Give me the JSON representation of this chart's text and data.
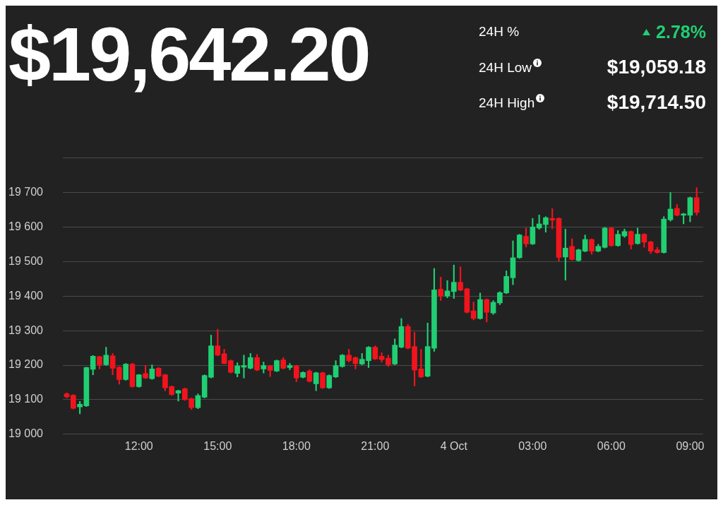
{
  "chart_data": {
    "type": "candlestick",
    "title": "$19,642.20",
    "annotations": [
      "24H %",
      "2.78%",
      "24H Low",
      "$19,059.18",
      "24H High",
      "$19,714.50"
    ],
    "x": [
      "--10-03T09:15",
      "--10-03T09:30",
      "--10-03T09:45",
      "--10-03T10:00",
      "--10-03T10:15",
      "--10-03T10:30",
      "--10-03T10:45",
      "--10-03T11:00",
      "--10-03T11:15",
      "--10-03T11:30",
      "--10-03T11:45",
      "--10-03T12:00",
      "--10-03T12:15",
      "--10-03T12:30",
      "--10-03T12:45",
      "--10-03T13:00",
      "--10-03T13:15",
      "--10-03T13:30",
      "--10-03T13:45",
      "--10-03T14:00",
      "--10-03T14:15",
      "--10-03T14:30",
      "--10-03T14:45",
      "--10-03T15:00",
      "--10-03T15:15",
      "--10-03T15:30",
      "--10-03T15:45",
      "--10-03T16:00",
      "--10-03T16:15",
      "--10-03T16:30",
      "--10-03T16:45",
      "--10-03T17:00",
      "--10-03T17:15",
      "--10-03T17:30",
      "--10-03T17:45",
      "--10-03T18:00",
      "--10-03T18:15",
      "--10-03T18:30",
      "--10-03T18:45",
      "--10-03T19:00",
      "--10-03T19:15",
      "--10-03T19:30",
      "--10-03T19:45",
      "--10-03T20:00",
      "--10-03T20:15",
      "--10-03T20:30",
      "--10-03T20:45",
      "--10-03T21:00",
      "--10-03T21:15",
      "--10-03T21:30",
      "--10-03T21:45",
      "--10-03T22:00",
      "--10-03T22:15",
      "--10-03T22:30",
      "--10-03T22:45",
      "--10-03T23:00",
      "--10-03T23:15",
      "--10-03T23:30",
      "--10-03T23:45",
      "--10-04T00:00",
      "--10-04T00:15",
      "--10-04T00:30",
      "--10-04T00:45",
      "--10-04T01:00",
      "--10-04T01:15",
      "--10-04T01:30",
      "--10-04T01:45",
      "--10-04T02:00",
      "--10-04T02:15",
      "--10-04T02:30",
      "--10-04T02:45",
      "--10-04T03:00",
      "--10-04T03:15",
      "--10-04T03:30",
      "--10-04T03:45",
      "--10-04T04:00",
      "--10-04T04:15",
      "--10-04T04:30",
      "--10-04T04:45",
      "--10-04T05:00",
      "--10-04T05:15",
      "--10-04T05:30",
      "--10-04T05:45",
      "--10-04T06:00",
      "--10-04T06:15",
      "--10-04T06:30",
      "--10-04T06:45",
      "--10-04T07:00",
      "--10-04T07:15",
      "--10-04T07:30",
      "--10-04T07:45",
      "--10-04T08:00",
      "--10-04T08:15",
      "--10-04T08:30",
      "--10-04T08:45",
      "--10-04T09:00",
      "--10-04T09:15"
    ],
    "ohlc": [
      [
        19117,
        19120,
        19105,
        19108
      ],
      [
        19113,
        19115,
        19073,
        19075
      ],
      [
        19079,
        19095,
        19059,
        19087
      ],
      [
        19082,
        19194,
        19080,
        19193
      ],
      [
        19188,
        19228,
        19172,
        19226
      ],
      [
        19225,
        19226,
        19189,
        19201
      ],
      [
        19201,
        19252,
        19199,
        19229
      ],
      [
        19227,
        19234,
        19172,
        19191
      ],
      [
        19194,
        19196,
        19145,
        19158
      ],
      [
        19158,
        19205,
        19156,
        19203
      ],
      [
        19203,
        19206,
        19136,
        19138
      ],
      [
        19138,
        19173,
        19136,
        19172
      ],
      [
        19176,
        19199,
        19161,
        19163
      ],
      [
        19161,
        19201,
        19159,
        19189
      ],
      [
        19191,
        19193,
        19166,
        19168
      ],
      [
        19172,
        19174,
        19126,
        19134
      ],
      [
        19138,
        19140,
        19112,
        19115
      ],
      [
        19119,
        19128,
        19096,
        19126
      ],
      [
        19132,
        19134,
        19098,
        19100
      ],
      [
        19103,
        19105,
        19072,
        19077
      ],
      [
        19077,
        19117,
        19074,
        19112
      ],
      [
        19107,
        19172,
        19105,
        19170
      ],
      [
        19165,
        19287,
        19163,
        19256
      ],
      [
        19256,
        19304,
        19227,
        19229
      ],
      [
        19233,
        19246,
        19203,
        19205
      ],
      [
        19213,
        19215,
        19177,
        19179
      ],
      [
        19176,
        19207,
        19166,
        19198
      ],
      [
        19194,
        19229,
        19163,
        19199
      ],
      [
        19191,
        19234,
        19189,
        19222
      ],
      [
        19222,
        19231,
        19184,
        19186
      ],
      [
        19189,
        19209,
        19177,
        19199
      ],
      [
        19198,
        19200,
        19167,
        19185
      ],
      [
        19183,
        19215,
        19181,
        19213
      ],
      [
        19215,
        19222,
        19189,
        19191
      ],
      [
        19193,
        19205,
        19187,
        19199
      ],
      [
        19198,
        19200,
        19152,
        19163
      ],
      [
        19165,
        19181,
        19163,
        19179
      ],
      [
        19183,
        19187,
        19151,
        19153
      ],
      [
        19146,
        19180,
        19126,
        19178
      ],
      [
        19178,
        19180,
        19132,
        19134
      ],
      [
        19134,
        19172,
        19132,
        19170
      ],
      [
        19166,
        19213,
        19164,
        19199
      ],
      [
        19196,
        19231,
        19194,
        19229
      ],
      [
        19229,
        19246,
        19209,
        19213
      ],
      [
        19222,
        19224,
        19189,
        19204
      ],
      [
        19203,
        19234,
        19201,
        19217
      ],
      [
        19213,
        19254,
        19193,
        19252
      ],
      [
        19252,
        19256,
        19216,
        19218
      ],
      [
        19226,
        19236,
        19209,
        19216
      ],
      [
        19220,
        19229,
        19196,
        19201
      ],
      [
        19203,
        19276,
        19201,
        19258
      ],
      [
        19252,
        19335,
        19250,
        19312
      ],
      [
        19312,
        19318,
        19247,
        19249
      ],
      [
        19254,
        19295,
        19140,
        19186
      ],
      [
        19189,
        19246,
        19164,
        19166
      ],
      [
        19168,
        19322,
        19166,
        19254
      ],
      [
        19249,
        19480,
        19240,
        19418
      ],
      [
        19420,
        19455,
        19387,
        19400
      ],
      [
        19400,
        19445,
        19395,
        19415
      ],
      [
        19413,
        19490,
        19393,
        19440
      ],
      [
        19440,
        19485,
        19415,
        19417
      ],
      [
        19421,
        19423,
        19351,
        19353
      ],
      [
        19357,
        19383,
        19331,
        19335
      ],
      [
        19335,
        19409,
        19333,
        19390
      ],
      [
        19390,
        19392,
        19325,
        19353
      ],
      [
        19351,
        19387,
        19347,
        19382
      ],
      [
        19380,
        19413,
        19375,
        19410
      ],
      [
        19409,
        19473,
        19407,
        19457
      ],
      [
        19453,
        19560,
        19433,
        19511
      ],
      [
        19511,
        19579,
        19509,
        19577
      ],
      [
        19573,
        19597,
        19542,
        19551
      ],
      [
        19551,
        19625,
        19549,
        19600
      ],
      [
        19597,
        19635,
        19593,
        19609
      ],
      [
        19607,
        19630,
        19585,
        19627
      ],
      [
        19625,
        19653,
        19595,
        19620
      ],
      [
        19625,
        19627,
        19501,
        19512
      ],
      [
        19513,
        19594,
        19446,
        19539
      ],
      [
        19544,
        19566,
        19504,
        19506
      ],
      [
        19503,
        19536,
        19501,
        19534
      ],
      [
        19530,
        19577,
        19528,
        19564
      ],
      [
        19564,
        19566,
        19521,
        19530
      ],
      [
        19530,
        19550,
        19528,
        19544
      ],
      [
        19541,
        19599,
        19539,
        19597
      ],
      [
        19597,
        19599,
        19544,
        19546
      ],
      [
        19546,
        19590,
        19544,
        19579
      ],
      [
        19574,
        19594,
        19570,
        19587
      ],
      [
        19587,
        19589,
        19536,
        19549
      ],
      [
        19552,
        19597,
        19550,
        19579
      ],
      [
        19579,
        19581,
        19541,
        19556
      ],
      [
        19557,
        19559,
        19523,
        19530
      ],
      [
        19534,
        19541,
        19524,
        19526
      ],
      [
        19526,
        19630,
        19524,
        19623
      ],
      [
        19621,
        19700,
        19617,
        19652
      ],
      [
        19654,
        19665,
        19632,
        19634
      ],
      [
        19634,
        19640,
        19609,
        19638
      ],
      [
        19634,
        19687,
        19615,
        19685
      ],
      [
        19685,
        19714,
        19634,
        19642
      ]
    ],
    "colors": [
      "#f2141d",
      "#f2141d",
      "#1fcf72",
      "#1fcf72",
      "#1fcf72",
      "#f2141d",
      "#1fcf72",
      "#f2141d",
      "#f2141d",
      "#1fcf72",
      "#f2141d",
      "#1fcf72",
      "#f2141d",
      "#1fcf72",
      "#f2141d",
      "#f2141d",
      "#f2141d",
      "#1fcf72",
      "#f2141d",
      "#f2141d",
      "#1fcf72",
      "#1fcf72",
      "#1fcf72",
      "#f2141d",
      "#f2141d",
      "#f2141d",
      "#1fcf72",
      "#1fcf72",
      "#1fcf72",
      "#f2141d",
      "#1fcf72",
      "#f2141d",
      "#1fcf72",
      "#f2141d",
      "#1fcf72",
      "#f2141d",
      "#1fcf72",
      "#f2141d",
      "#1fcf72",
      "#f2141d",
      "#1fcf72",
      "#1fcf72",
      "#1fcf72",
      "#f2141d",
      "#f2141d",
      "#1fcf72",
      "#1fcf72",
      "#f2141d",
      "#f2141d",
      "#f2141d",
      "#1fcf72",
      "#1fcf72",
      "#f2141d",
      "#f2141d",
      "#f2141d",
      "#1fcf72",
      "#1fcf72",
      "#f2141d",
      "#1fcf72",
      "#1fcf72",
      "#f2141d",
      "#f2141d",
      "#f2141d",
      "#1fcf72",
      "#f2141d",
      "#1fcf72",
      "#1fcf72",
      "#1fcf72",
      "#1fcf72",
      "#1fcf72",
      "#f2141d",
      "#1fcf72",
      "#1fcf72",
      "#1fcf72",
      "#f2141d",
      "#f2141d",
      "#1fcf72",
      "#f2141d",
      "#1fcf72",
      "#1fcf72",
      "#f2141d",
      "#1fcf72",
      "#1fcf72",
      "#f2141d",
      "#1fcf72",
      "#1fcf72",
      "#f2141d",
      "#1fcf72",
      "#f2141d",
      "#f2141d",
      "#f2141d",
      "#1fcf72",
      "#1fcf72",
      "#f2141d",
      "#1fcf72",
      "#1fcf72",
      "#f2141d"
    ],
    "xlim": [
      "--10-03T09:06",
      "--10-04T09:30"
    ],
    "xticks": [
      {
        "value": "--10-03T12:00",
        "label": "12:00"
      },
      {
        "value": "--10-03T15:00",
        "label": "15:00"
      },
      {
        "value": "--10-03T18:00",
        "label": "18:00"
      },
      {
        "value": "--10-03T21:00",
        "label": "21:00"
      },
      {
        "value": "--10-04",
        "label": "4 Oct"
      },
      {
        "value": "--10-04T03:00",
        "label": "03:00"
      },
      {
        "value": "--10-04T06:00",
        "label": "06:00"
      },
      {
        "value": "--10-04T09:00",
        "label": "09:00"
      }
    ],
    "ylim": [
      19000,
      19800
    ],
    "yticks": [
      {
        "value": 19000,
        "label": "19 000"
      },
      {
        "value": 19100,
        "label": "19 100"
      },
      {
        "value": 19200,
        "label": "19 200"
      },
      {
        "value": 19300,
        "label": "19 300"
      },
      {
        "value": 19400,
        "label": "19 400"
      },
      {
        "value": 19500,
        "label": "19 500"
      },
      {
        "value": 19600,
        "label": "19 600"
      },
      {
        "value": 19700,
        "label": "19 700"
      },
      {
        "value": 19800,
        "label": null
      }
    ],
    "grid": "y"
  }
}
